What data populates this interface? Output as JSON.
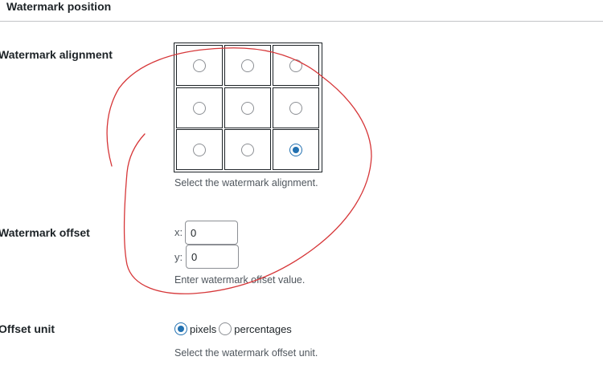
{
  "section": {
    "title": "Watermark position"
  },
  "alignment": {
    "label": "Watermark alignment",
    "cells": [
      {
        "checked": false
      },
      {
        "checked": false
      },
      {
        "checked": false
      },
      {
        "checked": false
      },
      {
        "checked": false
      },
      {
        "checked": false
      },
      {
        "checked": false
      },
      {
        "checked": false
      },
      {
        "checked": true
      }
    ],
    "help": "Select the watermark alignment."
  },
  "offset": {
    "label": "Watermark offset",
    "x_label": "x:",
    "x_value": "0",
    "y_label": "y:",
    "y_value": "0",
    "help": "Enter watermark offset value."
  },
  "unit": {
    "label": "Offset unit",
    "options": [
      {
        "label": "pixels",
        "checked": true
      },
      {
        "label": "percentages",
        "checked": false
      }
    ],
    "help": "Select the watermark offset unit."
  },
  "colors": {
    "accent": "#2271b1",
    "annotation": "#d63638"
  }
}
